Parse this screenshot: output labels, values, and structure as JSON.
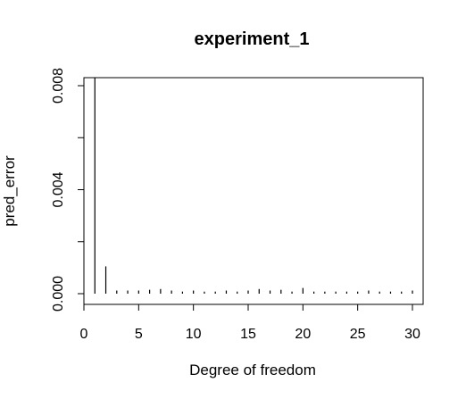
{
  "chart_data": {
    "type": "bar",
    "style": "histogram-spikes",
    "title": "experiment_1",
    "xlabel": "Degree of freedom",
    "ylabel": "pred_error",
    "xlim": [
      0,
      30
    ],
    "ylim": [
      0,
      0.0084
    ],
    "x_ticks": [
      0,
      5,
      10,
      15,
      20,
      25,
      30
    ],
    "x_tick_labels": [
      "0",
      "5",
      "10",
      "15",
      "20",
      "25",
      "30"
    ],
    "y_ticks": [
      0.0,
      0.004,
      0.008
    ],
    "y_tick_labels": [
      "0.000",
      "0.004",
      "0.008"
    ],
    "grid": false,
    "legend": "none",
    "x": [
      1,
      2,
      3,
      4,
      5,
      6,
      7,
      8,
      9,
      10,
      11,
      12,
      13,
      14,
      15,
      16,
      17,
      18,
      19,
      20,
      21,
      22,
      23,
      24,
      25,
      26,
      27,
      28,
      29,
      30
    ],
    "values": [
      0.0084,
      0.00105,
      0.00012,
      0.00012,
      0.00012,
      0.00015,
      0.00018,
      0.00012,
      8e-05,
      0.00012,
      8e-05,
      8e-05,
      0.00012,
      8e-05,
      0.00012,
      0.00018,
      0.00012,
      0.00015,
      8e-05,
      0.00022,
      8e-05,
      8e-05,
      8e-05,
      8e-05,
      8e-05,
      0.00012,
      8e-05,
      8e-05,
      8e-05,
      0.00012
    ]
  }
}
